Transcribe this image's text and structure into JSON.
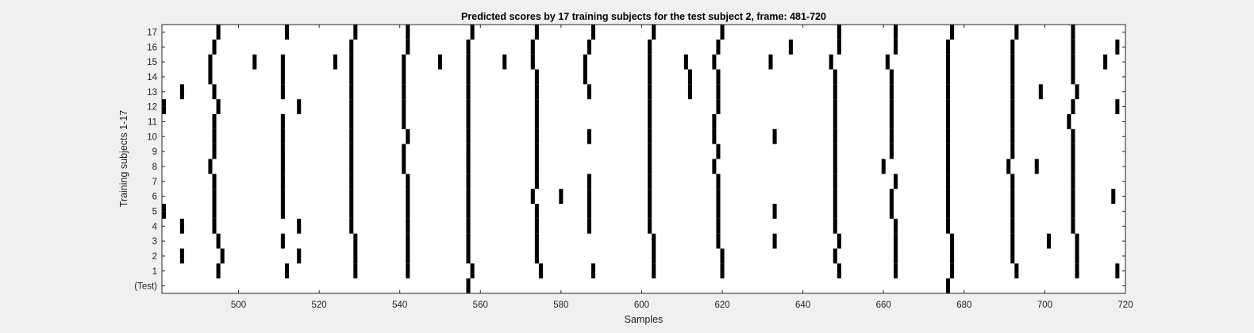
{
  "chart_data": {
    "type": "heatmap",
    "title": "Predicted scores by 17 training subjects for the test subject 2, frame: 481-720",
    "xlabel": "Samples",
    "ylabel": "Training subjects 1-17",
    "xlim": [
      481,
      720
    ],
    "xticks": [
      500,
      520,
      540,
      560,
      580,
      600,
      620,
      640,
      660,
      680,
      700,
      720
    ],
    "row_labels": [
      "(Test)",
      "1",
      "2",
      "3",
      "4",
      "5",
      "6",
      "7",
      "8",
      "9",
      "10",
      "11",
      "12",
      "13",
      "14",
      "15",
      "16",
      "17"
    ],
    "colors": {
      "background": "#ffffff",
      "mark": "#000000",
      "figure": "#f0f0f0"
    },
    "rows": [
      {
        "label": "(Test)",
        "marks": [
          557,
          676
        ]
      },
      {
        "label": "1",
        "marks": [
          495,
          512,
          529,
          542,
          558,
          575,
          588,
          603,
          620,
          649,
          663,
          677,
          693,
          708,
          718
        ]
      },
      {
        "label": "2",
        "marks": [
          486,
          496,
          515,
          529,
          542,
          557,
          574,
          603,
          620,
          648,
          663,
          677,
          692,
          708
        ]
      },
      {
        "label": "3",
        "marks": [
          495,
          511,
          529,
          542,
          557,
          574,
          603,
          619,
          633,
          649,
          663,
          677,
          692,
          701,
          708
        ]
      },
      {
        "label": "4",
        "marks": [
          486,
          494,
          515,
          528,
          542,
          557,
          574,
          587,
          602,
          619,
          648,
          663,
          676,
          692,
          707
        ]
      },
      {
        "label": "5",
        "marks": [
          481,
          494,
          511,
          528,
          542,
          557,
          574,
          587,
          602,
          619,
          633,
          648,
          662,
          676,
          692,
          707
        ]
      },
      {
        "label": "6",
        "marks": [
          494,
          511,
          528,
          542,
          557,
          573,
          580,
          587,
          602,
          619,
          648,
          662,
          676,
          692,
          707,
          717
        ]
      },
      {
        "label": "7",
        "marks": [
          494,
          511,
          528,
          542,
          557,
          574,
          587,
          602,
          619,
          648,
          663,
          676,
          692,
          707
        ]
      },
      {
        "label": "8",
        "marks": [
          493,
          511,
          528,
          541,
          557,
          574,
          602,
          618,
          648,
          660,
          676,
          691,
          698,
          707
        ]
      },
      {
        "label": "9",
        "marks": [
          494,
          511,
          528,
          541,
          557,
          574,
          602,
          619,
          648,
          662,
          676,
          692,
          707
        ]
      },
      {
        "label": "10",
        "marks": [
          494,
          511,
          528,
          542,
          557,
          574,
          587,
          602,
          618,
          633,
          648,
          662,
          676,
          692,
          707
        ]
      },
      {
        "label": "11",
        "marks": [
          494,
          511,
          528,
          541,
          557,
          574,
          602,
          618,
          648,
          662,
          676,
          692,
          706
        ]
      },
      {
        "label": "12",
        "marks": [
          481,
          495,
          515,
          528,
          541,
          557,
          574,
          602,
          619,
          648,
          662,
          676,
          692,
          707,
          718
        ]
      },
      {
        "label": "13",
        "marks": [
          486,
          494,
          511,
          528,
          541,
          557,
          574,
          587,
          602,
          612,
          619,
          648,
          662,
          676,
          692,
          699,
          708
        ]
      },
      {
        "label": "14",
        "marks": [
          493,
          511,
          528,
          541,
          557,
          574,
          586,
          602,
          612,
          619,
          648,
          662,
          676,
          692,
          707
        ]
      },
      {
        "label": "15",
        "marks": [
          493,
          504,
          511,
          524,
          528,
          541,
          550,
          557,
          566,
          573,
          586,
          602,
          611,
          618,
          632,
          647,
          661,
          676,
          692,
          707,
          715
        ]
      },
      {
        "label": "16",
        "marks": [
          494,
          528,
          542,
          557,
          573,
          587,
          602,
          619,
          637,
          649,
          663,
          676,
          692,
          707,
          718
        ]
      },
      {
        "label": "17",
        "marks": [
          495,
          512,
          529,
          542,
          558,
          574,
          588,
          603,
          620,
          649,
          663,
          677,
          693,
          707
        ]
      }
    ]
  }
}
